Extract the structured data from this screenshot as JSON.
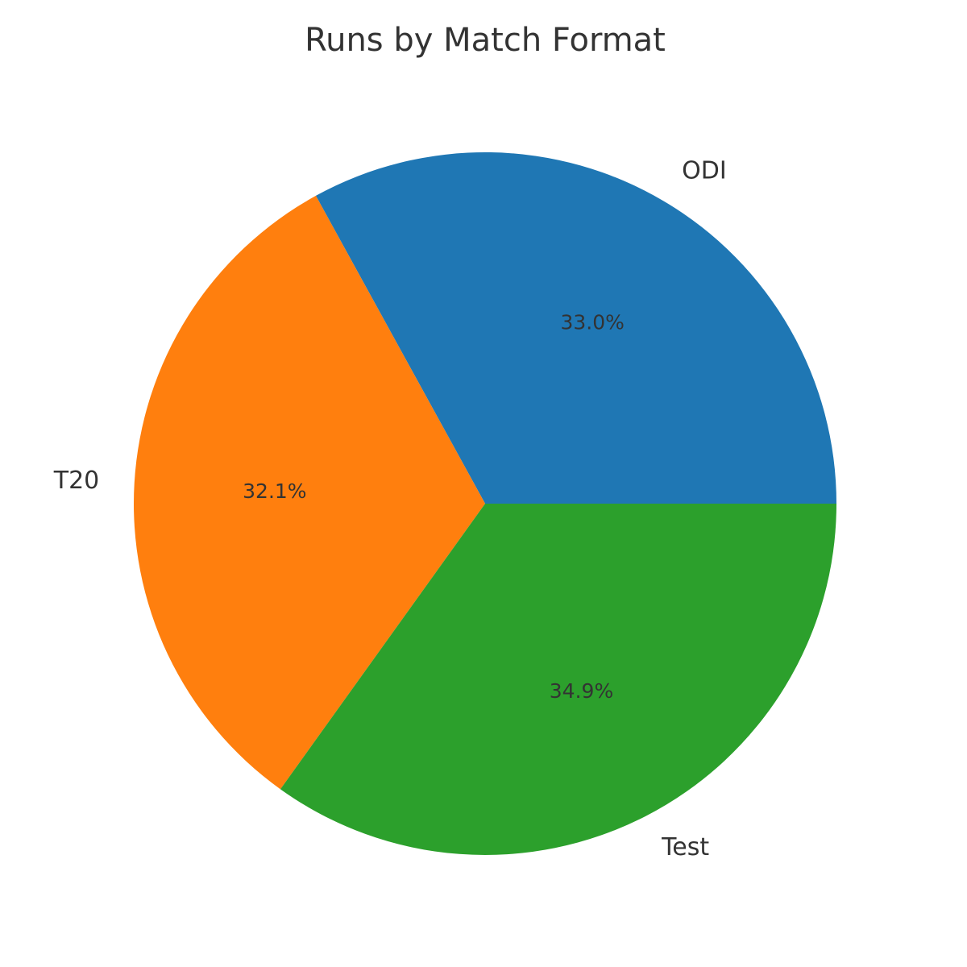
{
  "chart_data": {
    "type": "pie",
    "title": "Runs by Match Format",
    "categories": [
      "ODI",
      "T20",
      "Test"
    ],
    "values": [
      33.0,
      32.1,
      34.9
    ],
    "value_labels": [
      "33.0%",
      "32.1%",
      "34.9%"
    ],
    "colors": [
      "#1f77b4",
      "#ff7f0e",
      "#2ca02c"
    ],
    "start_angle_deg": 0,
    "direction": "counterclockwise",
    "legend": "none"
  }
}
